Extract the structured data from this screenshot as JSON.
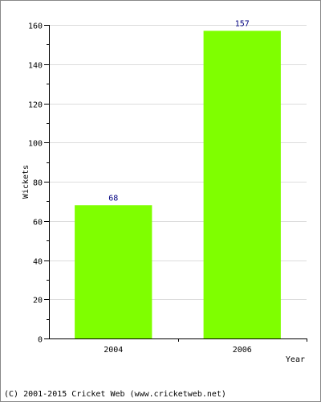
{
  "chart_data": {
    "type": "bar",
    "categories": [
      "2004",
      "2006"
    ],
    "values": [
      68,
      157
    ],
    "value_labels": [
      "68",
      "157"
    ],
    "xlabel": "Year",
    "ylabel": "Wickets",
    "ylim": [
      0,
      160
    ],
    "yticks": [
      "0",
      "20",
      "40",
      "60",
      "80",
      "100",
      "120",
      "140",
      "160"
    ],
    "grid": true,
    "bar_color": "#7fff00",
    "value_label_color": "#000080",
    "grid_color": "#dddddd"
  },
  "footer": {
    "copyright": "(C) 2001-2015 Cricket Web (www.cricketweb.net)"
  }
}
